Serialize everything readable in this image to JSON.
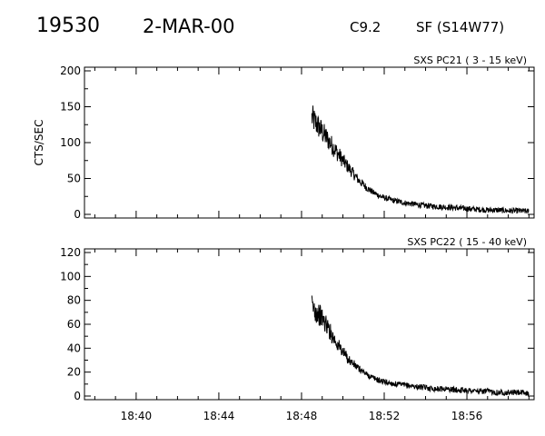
{
  "header": {
    "event_number": "19530",
    "date": "2-MAR-00",
    "flare_class": "C9.2",
    "location": "SF (S14W77)"
  },
  "chart_data": [
    {
      "type": "line",
      "title": "SXS PC21  (  3 - 15 keV)",
      "ylabel": "CTS/SEC",
      "xlabel": "",
      "xlim": [
        "18:37:30",
        "18:59:15"
      ],
      "ylim": [
        0,
        200
      ],
      "yticks": [
        0,
        50,
        100,
        150,
        200
      ],
      "xticks": [
        "18:40",
        "18:44",
        "18:48",
        "18:52",
        "18:56"
      ],
      "show_xtick_labels": false,
      "grid": false,
      "series": [
        {
          "x": [
            "18:48:30",
            "18:48:45",
            "18:49:00",
            "18:49:15",
            "18:49:30",
            "18:49:45",
            "18:50:00",
            "18:50:15",
            "18:50:30",
            "18:50:45",
            "18:51:00",
            "18:51:15",
            "18:51:30",
            "18:51:45",
            "18:52:00",
            "18:52:30",
            "18:53:00",
            "18:53:30",
            "18:54:00",
            "18:54:30",
            "18:55:00",
            "18:55:30",
            "18:56:00",
            "18:56:30",
            "18:57:00",
            "18:57:30",
            "18:58:00",
            "18:58:30",
            "18:59:00"
          ],
          "y": [
            135,
            125,
            115,
            105,
            95,
            85,
            75,
            66,
            57,
            48,
            41,
            35,
            30,
            26,
            23,
            19,
            16,
            14,
            12,
            11,
            10,
            9,
            8,
            7,
            6,
            6,
            5,
            5,
            4
          ]
        }
      ]
    },
    {
      "type": "line",
      "title": "SXS PC22  ( 15 - 40 keV)",
      "ylabel": "",
      "xlabel": "",
      "xlim": [
        "18:37:30",
        "18:59:15"
      ],
      "ylim": [
        0,
        120
      ],
      "yticks": [
        0,
        20,
        40,
        60,
        80,
        100,
        120
      ],
      "xticks": [
        "18:40",
        "18:44",
        "18:48",
        "18:52",
        "18:56"
      ],
      "show_xtick_labels": true,
      "grid": false,
      "series": [
        {
          "x": [
            "18:48:30",
            "18:48:45",
            "18:49:00",
            "18:49:15",
            "18:49:30",
            "18:49:45",
            "18:50:00",
            "18:50:15",
            "18:50:30",
            "18:50:45",
            "18:51:00",
            "18:51:15",
            "18:51:30",
            "18:51:45",
            "18:52:00",
            "18:52:30",
            "18:53:00",
            "18:53:30",
            "18:54:00",
            "18:54:30",
            "18:55:00",
            "18:55:30",
            "18:56:00",
            "18:56:30",
            "18:57:00",
            "18:57:30",
            "18:58:00",
            "18:58:30",
            "18:59:00"
          ],
          "y": [
            75,
            70,
            65,
            58,
            50,
            43,
            37,
            31,
            27,
            23,
            20,
            17,
            15,
            13,
            12,
            10,
            9,
            8,
            7,
            6,
            6,
            5,
            5,
            4,
            4,
            3,
            3,
            3,
            2
          ]
        }
      ]
    }
  ]
}
